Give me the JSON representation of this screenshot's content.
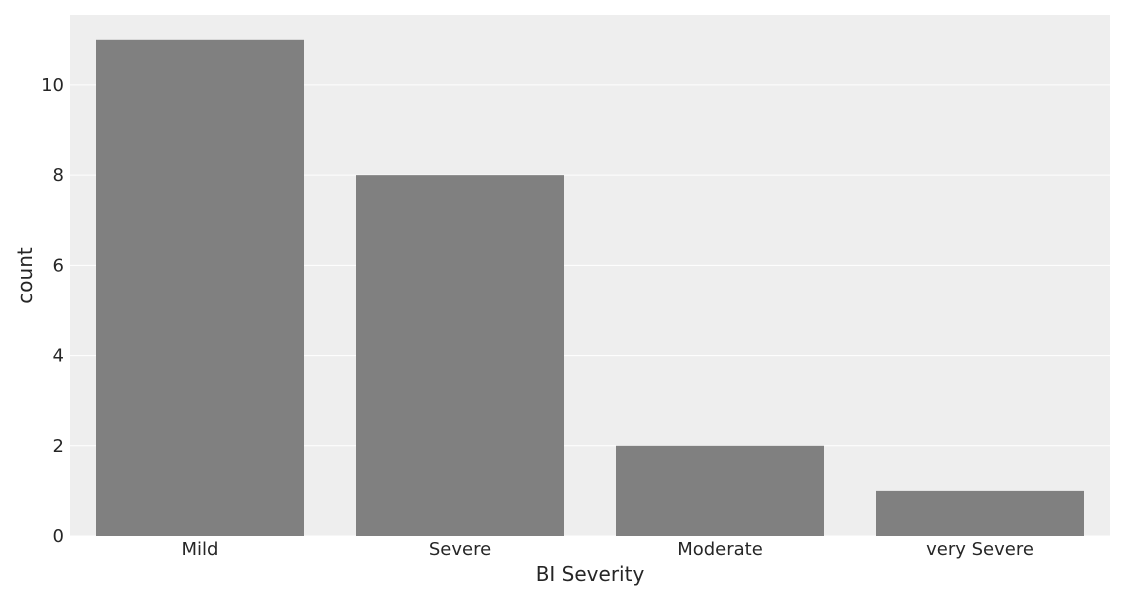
{
  "chart_data": {
    "type": "bar",
    "title": "",
    "xlabel": "BI Severity",
    "ylabel": "count",
    "categories": [
      "Mild",
      "Severe",
      "Moderate",
      "very Severe"
    ],
    "values": [
      11,
      8,
      2,
      1
    ],
    "ylim": [
      0,
      11.55
    ],
    "yticks": [
      0,
      2,
      4,
      6,
      8,
      10
    ],
    "grid": true,
    "legend": "none",
    "colors": {
      "bar": "#808080",
      "plot_background": "#eeeeee",
      "grid": "#ffffff",
      "text": "#262626"
    }
  }
}
